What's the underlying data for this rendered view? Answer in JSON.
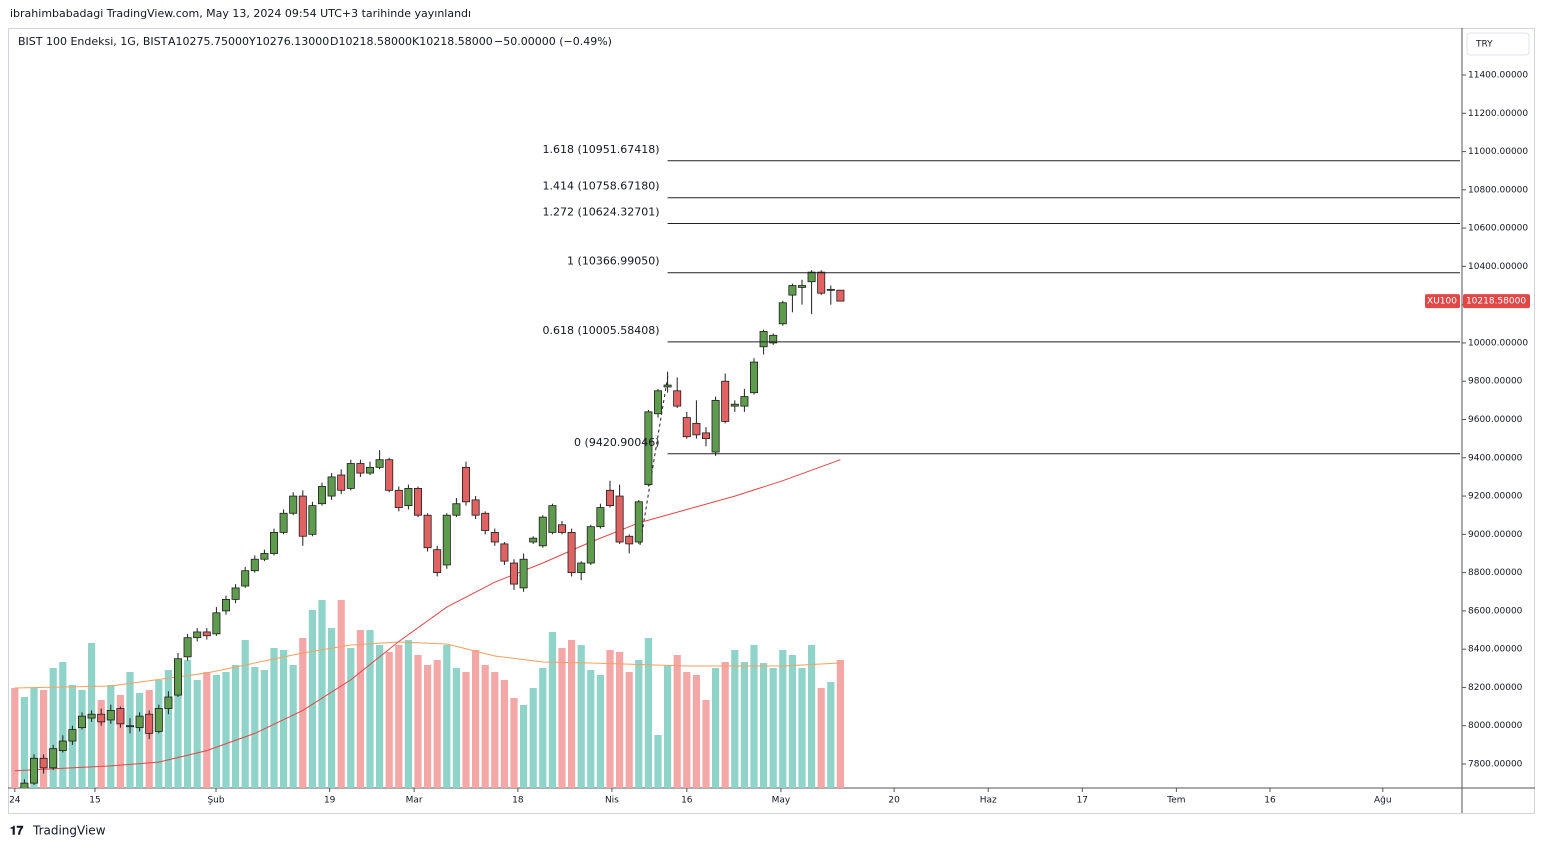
{
  "header": {
    "published": "ibrahimbabadagi TradingView.com, May 13, 2024 09:54 UTC+3 tarihinde yayınlandı",
    "symbol": "BIST 100 Endeksi, 1G, BIST",
    "open": "A10275.75000",
    "high": "Y10276.13000",
    "low": "D10218.58000",
    "close": "K10218.58000",
    "change": "−50.00000 (−0.49%)"
  },
  "currency": "TRY",
  "footer": "TradingView",
  "chart_data": {
    "type": "candlestick",
    "open": [
      7620,
      7610,
      7700,
      7830,
      7780,
      7870,
      7920,
      7990,
      8040,
      8060,
      8030,
      8090,
      8000,
      7990,
      8060,
      7970,
      8090,
      8160,
      8360,
      8460,
      8490,
      8480,
      8600,
      8660,
      8730,
      8810,
      8870,
      8900,
      9010,
      9110,
      9200,
      9000,
      9160,
      9200,
      9310,
      9240,
      9370,
      9320,
      9350,
      9390,
      9230,
      9150,
      9240,
      9100,
      8920,
      8840,
      9100,
      9350,
      9180,
      9110,
      9010,
      8950,
      8850,
      8720,
      8960,
      8940,
      9010,
      9050,
      9010,
      8800,
      8850,
      9040,
      9230,
      9200,
      8990,
      8960,
      9260,
      9630,
      9770,
      9750,
      9610,
      9580,
      9530,
      9430,
      9800,
      9670,
      9670,
      9740,
      9980,
      10000,
      10100,
      10250,
      10290,
      10320,
      10370,
      10280,
      10275.75
    ],
    "high": [
      7650,
      7720,
      7850,
      7850,
      7900,
      7950,
      8000,
      8070,
      8080,
      8090,
      8110,
      8100,
      8040,
      8070,
      8080,
      8110,
      8180,
      8380,
      8480,
      8510,
      8510,
      8620,
      8680,
      8740,
      8830,
      8890,
      8920,
      9030,
      9130,
      9220,
      9230,
      9170,
      9270,
      9320,
      9340,
      9390,
      9390,
      9380,
      9440,
      9400,
      9250,
      9260,
      9250,
      9110,
      8940,
      9110,
      9190,
      9380,
      9200,
      9120,
      9030,
      8960,
      8870,
      8900,
      8990,
      9100,
      9160,
      9070,
      9030,
      8860,
      9050,
      9160,
      9280,
      9260,
      9000,
      9180,
      9650,
      9760,
      9850,
      9820,
      9640,
      9700,
      9560,
      9720,
      9840,
      9700,
      9760,
      9920,
      10070,
      10050,
      10220,
      10310,
      10330,
      10380,
      10380,
      10300,
      10276.13
    ],
    "low": [
      7580,
      7590,
      7690,
      7750,
      7770,
      7860,
      7900,
      7980,
      8020,
      8000,
      8010,
      7990,
      7960,
      7970,
      7930,
      7960,
      8060,
      8150,
      8340,
      8440,
      8450,
      8470,
      8580,
      8640,
      8720,
      8800,
      8860,
      8890,
      9000,
      9100,
      8940,
      8990,
      9150,
      9180,
      9210,
      9230,
      9300,
      9310,
      9340,
      9220,
      9120,
      9130,
      9090,
      8910,
      8780,
      8820,
      9090,
      9150,
      9080,
      9000,
      8940,
      8840,
      8710,
      8700,
      8950,
      8930,
      9000,
      9000,
      8780,
      8760,
      8840,
      9030,
      9140,
      8950,
      8900,
      8950,
      9250,
      9610,
      9740,
      9660,
      9500,
      9500,
      9460,
      9410,
      9580,
      9640,
      9640,
      9730,
      9940,
      9990,
      10090,
      10160,
      10200,
      10150,
      10250,
      10200,
      10218.58
    ],
    "close": [
      7600,
      7700,
      7830,
      7780,
      7880,
      7920,
      7980,
      8050,
      8060,
      8020,
      8080,
      8010,
      8000,
      8050,
      7960,
      8090,
      8150,
      8350,
      8460,
      8490,
      8470,
      8590,
      8660,
      8720,
      8810,
      8870,
      8900,
      9010,
      9110,
      9200,
      8990,
      9150,
      9250,
      9300,
      9230,
      9370,
      9320,
      9350,
      9390,
      9230,
      9140,
      9240,
      9100,
      8930,
      8800,
      9100,
      9160,
      9170,
      9100,
      9020,
      8960,
      8860,
      8740,
      8870,
      8980,
      9090,
      9150,
      9010,
      8800,
      8850,
      9040,
      9140,
      9150,
      8960,
      8950,
      9170,
      9640,
      9750,
      9780,
      9670,
      9510,
      9520,
      9500,
      9700,
      9590,
      9680,
      9720,
      9900,
      10060,
      10040,
      10210,
      10300,
      10300,
      10370,
      10260,
      10280,
      10218.58
    ],
    "volume": [
      100,
      91,
      100,
      98,
      120,
      126,
      103,
      98,
      145,
      88,
      103,
      93,
      116,
      95,
      98,
      108,
      118,
      110,
      128,
      108,
      116,
      113,
      116,
      123,
      148,
      121,
      118,
      140,
      138,
      123,
      150,
      178,
      188,
      160,
      188,
      140,
      158,
      158,
      143,
      136,
      143,
      148,
      133,
      123,
      128,
      143,
      120,
      116,
      138,
      123,
      116,
      108,
      90,
      83,
      100,
      120,
      156,
      140,
      148,
      143,
      118,
      113,
      138,
      136,
      116,
      128,
      150,
      53,
      123,
      133,
      116,
      113,
      88,
      120,
      126,
      138,
      126,
      143,
      125,
      120,
      138,
      133,
      120,
      143,
      100,
      106,
      128
    ],
    "moving_average": {
      "color": "#e04848",
      "x": [
        0,
        10,
        15,
        20,
        25,
        30,
        35,
        40,
        45,
        50,
        55,
        60,
        65,
        70,
        75,
        80,
        86
      ],
      "values": [
        7765,
        7790,
        7810,
        7870,
        7960,
        8080,
        8240,
        8440,
        8620,
        8750,
        8850,
        8960,
        9060,
        9130,
        9200,
        9280,
        9390
      ]
    },
    "volume_average": {
      "color": "#f5a060",
      "x": [
        0,
        10,
        20,
        30,
        35,
        40,
        45,
        50,
        55,
        60,
        70,
        80,
        86
      ],
      "values": [
        100,
        102,
        115,
        135,
        143,
        146,
        144,
        132,
        126,
        125,
        122,
        122,
        125
      ]
    },
    "colors": {
      "up": "#5f9b4c",
      "down": "#e06262",
      "border": "#1e1e1e",
      "volume_up": "#8fd3c9",
      "volume_down": "#f4a7a7"
    },
    "fibonacci": {
      "x_start": 68,
      "levels": [
        {
          "value": 10951.67418,
          "label": "1.618 (10951.67418)"
        },
        {
          "value": 10758.6718,
          "label": "1.414 (10758.67180)"
        },
        {
          "value": 10624.32701,
          "label": "1.272 (10624.32701)"
        },
        {
          "value": 10366.9905,
          "label": "1 (10366.99050)"
        },
        {
          "value": 10005.58408,
          "label": "0.618 (10005.58408)"
        },
        {
          "value": 9420.90046,
          "label": "0 (9420.90046)"
        }
      ]
    },
    "last_price": {
      "symbol": "XU100",
      "value": 10218.58,
      "label": "10218.58000"
    },
    "xlim": [
      -0.5,
      150.75
    ],
    "ylim": [
      7674.6,
      11645.6
    ],
    "xticks": [
      {
        "value": 0,
        "label": "24"
      },
      {
        "value": 8.35,
        "label": "15"
      },
      {
        "value": 20.96,
        "label": "Şub"
      },
      {
        "value": 32.8,
        "label": "19"
      },
      {
        "value": 41.6,
        "label": "Mar"
      },
      {
        "value": 52.4,
        "label": "18"
      },
      {
        "value": 62.2,
        "label": "Nis"
      },
      {
        "value": 70,
        "label": "16"
      },
      {
        "value": 79.8,
        "label": "May"
      },
      {
        "value": 91.6,
        "label": "20"
      },
      {
        "value": 101.4,
        "label": "Haz"
      },
      {
        "value": 111.2,
        "label": "17"
      },
      {
        "value": 121,
        "label": "Tem"
      },
      {
        "value": 130.75,
        "label": "16"
      },
      {
        "value": 142.5,
        "label": "Ağu"
      }
    ],
    "yticks": [
      {
        "value": 7800,
        "label": "7800.00000"
      },
      {
        "value": 8000,
        "label": "8000.00000"
      },
      {
        "value": 8200,
        "label": "8200.00000"
      },
      {
        "value": 8400,
        "label": "8400.00000"
      },
      {
        "value": 8600,
        "label": "8600.00000"
      },
      {
        "value": 8800,
        "label": "8800.00000"
      },
      {
        "value": 9000,
        "label": "9000.00000"
      },
      {
        "value": 9200,
        "label": "9200.00000"
      },
      {
        "value": 9400,
        "label": "9400.00000"
      },
      {
        "value": 9600,
        "label": "9600.00000"
      },
      {
        "value": 9800,
        "label": "9800.00000"
      },
      {
        "value": 10000,
        "label": "10000.00000"
      },
      {
        "value": 10200,
        "label": "10200.00000"
      },
      {
        "value": 10400,
        "label": "10400.00000"
      },
      {
        "value": 10600,
        "label": "10600.00000"
      },
      {
        "value": 10800,
        "label": "10800.00000"
      },
      {
        "value": 11000,
        "label": "11000.00000"
      },
      {
        "value": 11200,
        "label": "11200.00000"
      },
      {
        "value": 11400,
        "label": "11400.00000"
      }
    ]
  }
}
